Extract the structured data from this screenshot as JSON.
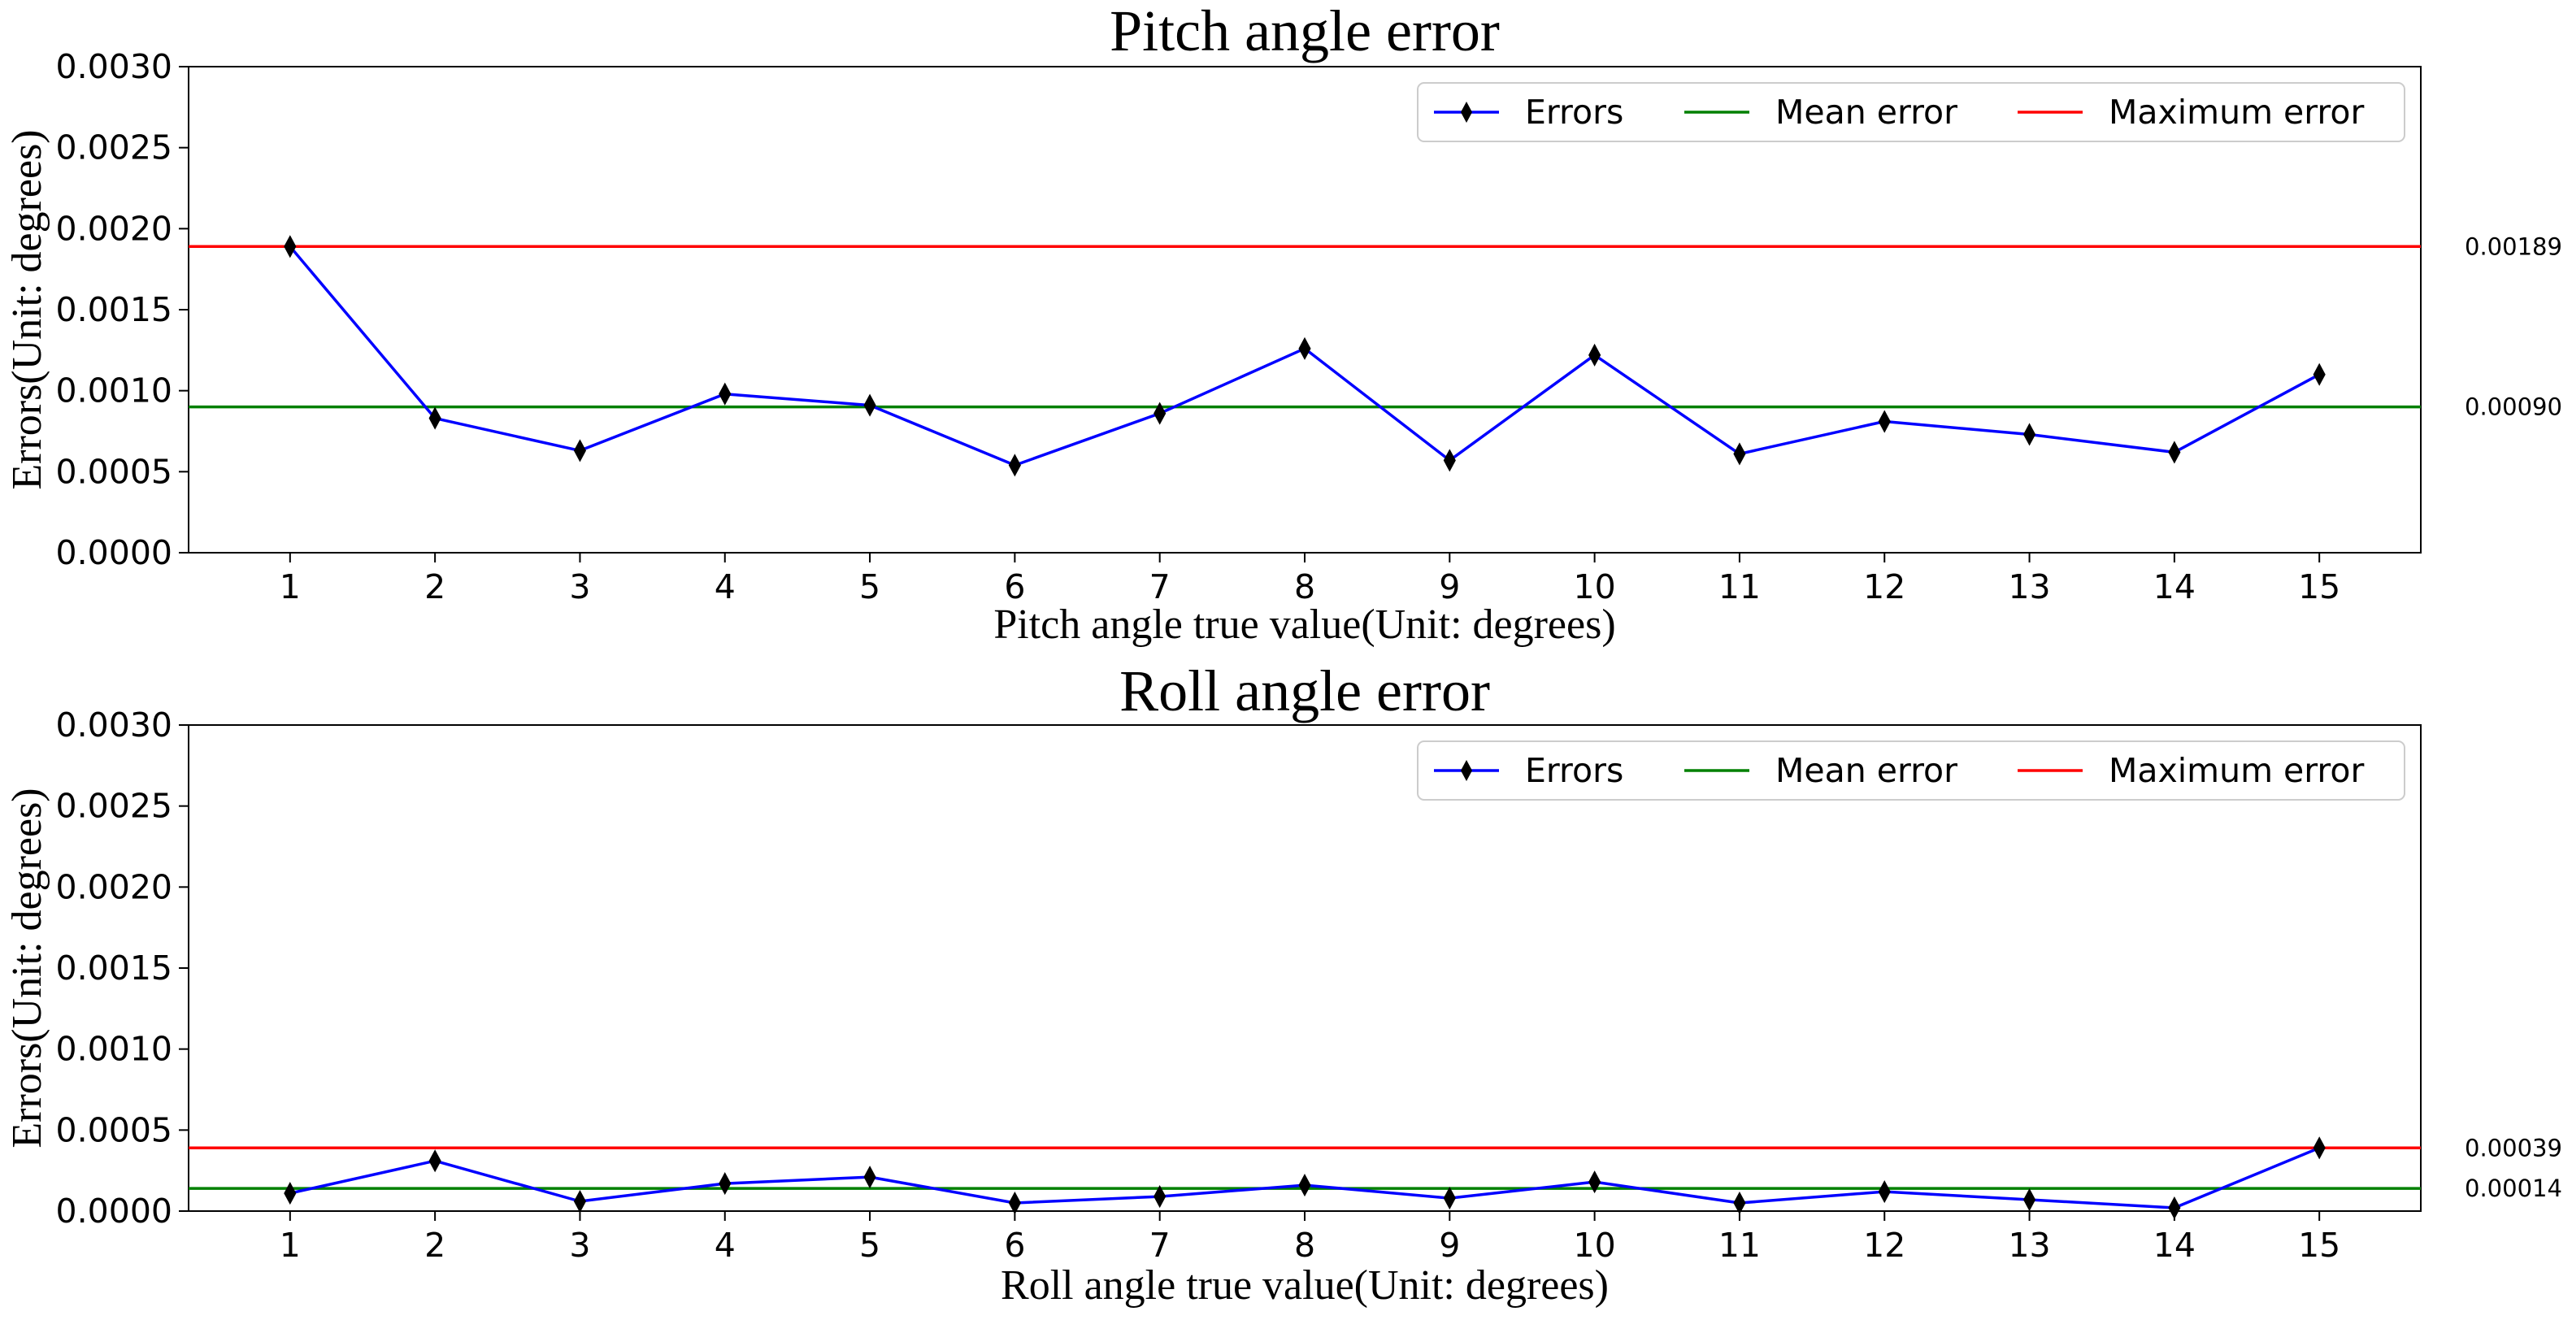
{
  "chart_data": [
    {
      "type": "line",
      "title": "Pitch angle error",
      "xlabel": "Pitch angle true value(Unit: degrees)",
      "ylabel": "Errors(Unit: degrees)",
      "categories": [
        "1",
        "2",
        "3",
        "4",
        "5",
        "6",
        "7",
        "8",
        "9",
        "10",
        "11",
        "12",
        "13",
        "14",
        "15"
      ],
      "ylim": [
        0,
        0.003
      ],
      "yticks": [
        "0.0000",
        "0.0005",
        "0.0010",
        "0.0015",
        "0.0020",
        "0.0025",
        "0.0030"
      ],
      "ytick_values": [
        0,
        0.0005,
        0.001,
        0.0015,
        0.002,
        0.0025,
        0.003
      ],
      "series": [
        {
          "name": "Errors",
          "values": [
            0.00189,
            0.00083,
            0.00063,
            0.00098,
            0.00091,
            0.00054,
            0.00086,
            0.00126,
            0.00057,
            0.00122,
            0.00061,
            0.00081,
            0.00073,
            0.00062,
            0.0011
          ]
        }
      ],
      "mean_error": 0.0009,
      "max_error": 0.00189,
      "annotations": {
        "mean": "0.00090",
        "max": "0.00189"
      },
      "legend": [
        "Errors",
        "Mean error",
        "Maximum error"
      ],
      "legend_position": "top-right",
      "colors": {
        "errors": "#0000ff",
        "marker": "#000000",
        "mean": "#008000",
        "max": "#ff0000"
      }
    },
    {
      "type": "line",
      "title": "Roll angle error",
      "xlabel": "Roll angle true value(Unit: degrees)",
      "ylabel": "Errors(Unit: degrees)",
      "categories": [
        "1",
        "2",
        "3",
        "4",
        "5",
        "6",
        "7",
        "8",
        "9",
        "10",
        "11",
        "12",
        "13",
        "14",
        "15"
      ],
      "ylim": [
        0,
        0.003
      ],
      "yticks": [
        "0.0000",
        "0.0005",
        "0.0010",
        "0.0015",
        "0.0020",
        "0.0025",
        "0.0030"
      ],
      "ytick_values": [
        0,
        0.0005,
        0.001,
        0.0015,
        0.002,
        0.0025,
        0.003
      ],
      "series": [
        {
          "name": "Errors",
          "values": [
            0.00011,
            0.00031,
            6e-05,
            0.00017,
            0.00021,
            5e-05,
            9e-05,
            0.00016,
            8e-05,
            0.00018,
            5e-05,
            0.00012,
            7e-05,
            2e-05,
            0.00039
          ]
        }
      ],
      "mean_error": 0.00014,
      "max_error": 0.00039,
      "annotations": {
        "mean": "0.00014",
        "max": "0.00039"
      },
      "legend": [
        "Errors",
        "Mean error",
        "Maximum error"
      ],
      "legend_position": "top-right",
      "colors": {
        "errors": "#0000ff",
        "marker": "#000000",
        "mean": "#008000",
        "max": "#ff0000"
      }
    }
  ]
}
